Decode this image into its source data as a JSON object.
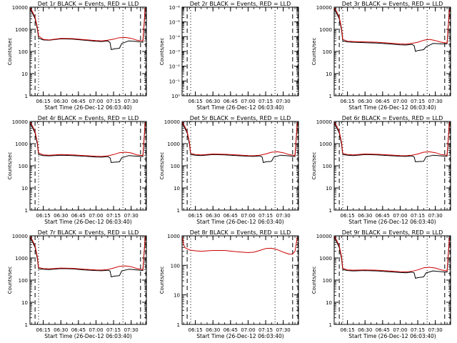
{
  "chart_data": [
    {
      "type": "line",
      "title": "Det 1r BLACK = Events, RED = LLD",
      "ylabel": "Counts/sec",
      "xlabel": "Start Time (26-Dec-12 06:03:40)",
      "xticks": [
        "06:15",
        "06:30",
        "06:45",
        "07:00",
        "07:15",
        "07:30"
      ],
      "yticks": [
        "1",
        "10",
        "100",
        "1000",
        "10000"
      ],
      "ylim": [
        1,
        10000
      ],
      "xlim": [
        "06:03:40",
        "07:43:00"
      ],
      "log_y": true,
      "series": [
        {
          "color": "#000000",
          "x": [
            "06:04",
            "06:06",
            "06:08",
            "06:10",
            "06:11",
            "06:15",
            "06:20",
            "06:30",
            "06:40",
            "06:50",
            "07:00",
            "07:05",
            "07:10",
            "07:12",
            "07:13",
            "07:15",
            "07:20",
            "07:22",
            "07:28",
            "07:35",
            "07:40",
            "07:42"
          ],
          "y": [
            8000,
            5000,
            3000,
            1000,
            400,
            330,
            320,
            370,
            360,
            320,
            290,
            280,
            300,
            250,
            120,
            130,
            140,
            230,
            300,
            280,
            260,
            9000
          ]
        },
        {
          "color": "#cc0000",
          "x": [
            "06:04",
            "06:06",
            "06:08",
            "06:10",
            "06:11",
            "06:15",
            "06:20",
            "06:30",
            "06:40",
            "06:50",
            "07:00",
            "07:05",
            "07:10",
            "07:15",
            "07:20",
            "07:25",
            "07:30",
            "07:35",
            "07:40",
            "07:42"
          ],
          "y": [
            9000,
            6000,
            3500,
            1200,
            500,
            350,
            330,
            390,
            380,
            340,
            310,
            300,
            320,
            360,
            420,
            430,
            390,
            320,
            300,
            9000
          ]
        }
      ]
    },
    {
      "type": "line",
      "title": "Det 2r BLACK = Events, RED = LLD",
      "ylabel": "Counts/sec",
      "xlabel": "Start Time (26-Dec-12 06:03:40)",
      "xticks": [
        "06:15",
        "06:30",
        "06:45",
        "07:00",
        "07:15",
        "07:30"
      ],
      "yticks": [
        "10⁰",
        "10⁻¹",
        "10⁻²",
        "10⁻³",
        "10⁻⁴",
        "10⁻⁵",
        "10⁻⁶"
      ],
      "ylim": [
        1,
        1e-06
      ],
      "xlim": [
        "06:03:40",
        "07:43:00"
      ],
      "log_y": true,
      "series": []
    },
    {
      "type": "line",
      "title": "Det 3r BLACK = Events, RED = LLD",
      "ylabel": "Counts/sec",
      "xlabel": "Start Time (26-Dec-12 06:03:40)",
      "xticks": [
        "06:15",
        "06:30",
        "06:45",
        "07:00",
        "07:15",
        "07:30"
      ],
      "yticks": [
        "1",
        "10",
        "100",
        "1000",
        "10000"
      ],
      "ylim": [
        1,
        10000
      ],
      "xlim": [
        "06:03:40",
        "07:43:00"
      ],
      "log_y": true,
      "series": [
        {
          "color": "#000000",
          "x": [
            "06:04",
            "06:06",
            "06:08",
            "06:10",
            "06:11",
            "06:15",
            "06:20",
            "06:30",
            "06:40",
            "06:50",
            "07:00",
            "07:05",
            "07:10",
            "07:12",
            "07:13",
            "07:15",
            "07:20",
            "07:22",
            "07:28",
            "07:35",
            "07:40",
            "07:42"
          ],
          "y": [
            8000,
            5000,
            3000,
            900,
            300,
            270,
            260,
            250,
            240,
            220,
            200,
            195,
            210,
            180,
            100,
            110,
            120,
            160,
            230,
            220,
            220,
            8000
          ]
        },
        {
          "color": "#cc0000",
          "x": [
            "06:04",
            "06:06",
            "06:08",
            "06:10",
            "06:11",
            "06:15",
            "06:20",
            "06:30",
            "06:40",
            "06:50",
            "07:00",
            "07:05",
            "07:10",
            "07:15",
            "07:20",
            "07:25",
            "07:30",
            "07:35",
            "07:40",
            "07:42"
          ],
          "y": [
            9000,
            6000,
            3500,
            1100,
            350,
            290,
            280,
            270,
            260,
            240,
            220,
            215,
            230,
            260,
            320,
            350,
            310,
            260,
            240,
            8000
          ]
        }
      ]
    },
    {
      "type": "line",
      "title": "Det 4r BLACK = Events, RED = LLD",
      "ylabel": "Counts/sec",
      "xlabel": "Start Time (26-Dec-12 06:03:40)",
      "xticks": [
        "06:15",
        "06:30",
        "06:45",
        "07:00",
        "07:15",
        "07:30"
      ],
      "yticks": [
        "1",
        "10",
        "100",
        "1000",
        "10000"
      ],
      "ylim": [
        1,
        10000
      ],
      "xlim": [
        "06:03:40",
        "07:43:00"
      ],
      "log_y": true,
      "series": [
        {
          "color": "#000000",
          "x": [
            "06:04",
            "06:06",
            "06:08",
            "06:10",
            "06:11",
            "06:15",
            "06:20",
            "06:30",
            "06:40",
            "06:50",
            "07:00",
            "07:05",
            "07:10",
            "07:12",
            "07:13",
            "07:15",
            "07:20",
            "07:22",
            "07:28",
            "07:35",
            "07:40",
            "07:42"
          ],
          "y": [
            8000,
            5000,
            3000,
            900,
            320,
            290,
            280,
            300,
            290,
            270,
            250,
            245,
            260,
            230,
            140,
            145,
            150,
            230,
            290,
            270,
            260,
            9000
          ]
        },
        {
          "color": "#cc0000",
          "x": [
            "06:04",
            "06:06",
            "06:08",
            "06:10",
            "06:11",
            "06:15",
            "06:20",
            "06:30",
            "06:40",
            "06:50",
            "07:00",
            "07:05",
            "07:10",
            "07:15",
            "07:20",
            "07:25",
            "07:30",
            "07:35",
            "07:40",
            "07:42"
          ],
          "y": [
            9000,
            6000,
            3500,
            1100,
            380,
            310,
            300,
            320,
            310,
            290,
            270,
            265,
            280,
            320,
            390,
            410,
            380,
            310,
            290,
            9000
          ]
        }
      ]
    },
    {
      "type": "line",
      "title": "Det 5r BLACK = Events, RED = LLD",
      "ylabel": "Counts/sec",
      "xlabel": "Start Time (26-Dec-12 06:03:40)",
      "xticks": [
        "06:15",
        "06:30",
        "06:45",
        "07:00",
        "07:15",
        "07:30"
      ],
      "yticks": [
        "1",
        "10",
        "100",
        "1000",
        "10000"
      ],
      "ylim": [
        1,
        10000
      ],
      "xlim": [
        "06:03:40",
        "07:43:00"
      ],
      "log_y": true,
      "series": [
        {
          "color": "#000000",
          "x": [
            "06:04",
            "06:06",
            "06:08",
            "06:10",
            "06:11",
            "06:15",
            "06:20",
            "06:30",
            "06:40",
            "06:50",
            "07:00",
            "07:05",
            "07:10",
            "07:12",
            "07:13",
            "07:15",
            "07:20",
            "07:22",
            "07:28",
            "07:35",
            "07:40",
            "07:42"
          ],
          "y": [
            8000,
            5000,
            3000,
            900,
            320,
            300,
            290,
            320,
            310,
            290,
            270,
            265,
            280,
            250,
            140,
            150,
            160,
            250,
            300,
            280,
            260,
            9000
          ]
        },
        {
          "color": "#cc0000",
          "x": [
            "06:04",
            "06:06",
            "06:08",
            "06:10",
            "06:11",
            "06:15",
            "06:20",
            "06:30",
            "06:40",
            "06:50",
            "07:00",
            "07:05",
            "07:10",
            "07:15",
            "07:20",
            "07:25",
            "07:30",
            "07:35",
            "07:40",
            "07:42"
          ],
          "y": [
            9000,
            6000,
            3500,
            1100,
            360,
            320,
            310,
            340,
            330,
            310,
            290,
            285,
            300,
            340,
            410,
            430,
            390,
            320,
            290,
            9000
          ]
        }
      ]
    },
    {
      "type": "line",
      "title": "Det 6r BLACK = Events, RED = LLD",
      "ylabel": "Counts/sec",
      "xlabel": "Start Time (26-Dec-12 06:03:40)",
      "xticks": [
        "06:15",
        "06:30",
        "06:45",
        "07:00",
        "07:15",
        "07:30"
      ],
      "yticks": [
        "1",
        "10",
        "100",
        "1000",
        "10000"
      ],
      "ylim": [
        1,
        10000
      ],
      "xlim": [
        "06:03:40",
        "07:43:00"
      ],
      "log_y": true,
      "series": [
        {
          "color": "#000000",
          "x": [
            "06:04",
            "06:06",
            "06:08",
            "06:10",
            "06:11",
            "06:15",
            "06:20",
            "06:30",
            "06:40",
            "06:50",
            "07:00",
            "07:05",
            "07:10",
            "07:12",
            "07:13",
            "07:15",
            "07:20",
            "07:22",
            "07:28",
            "07:35",
            "07:40",
            "07:42"
          ],
          "y": [
            8000,
            5000,
            3000,
            900,
            320,
            300,
            290,
            320,
            310,
            290,
            270,
            265,
            280,
            250,
            150,
            155,
            160,
            250,
            300,
            280,
            270,
            9000
          ]
        },
        {
          "color": "#cc0000",
          "x": [
            "06:04",
            "06:06",
            "06:08",
            "06:10",
            "06:11",
            "06:15",
            "06:20",
            "06:30",
            "06:40",
            "06:50",
            "07:00",
            "07:05",
            "07:10",
            "07:15",
            "07:20",
            "07:25",
            "07:30",
            "07:35",
            "07:40",
            "07:42"
          ],
          "y": [
            9000,
            6000,
            3500,
            1100,
            360,
            320,
            310,
            340,
            330,
            310,
            290,
            285,
            300,
            340,
            410,
            430,
            390,
            320,
            300,
            9000
          ]
        }
      ]
    },
    {
      "type": "line",
      "title": "Det 7r BLACK = Events, RED = LLD",
      "ylabel": "Counts/sec",
      "xlabel": "Start Time (26-Dec-12 06:03:40)",
      "xticks": [
        "06:15",
        "06:30",
        "06:45",
        "07:00",
        "07:15",
        "07:30"
      ],
      "yticks": [
        "1",
        "10",
        "100",
        "1000",
        "10000"
      ],
      "ylim": [
        1,
        10000
      ],
      "xlim": [
        "06:03:40",
        "07:43:00"
      ],
      "log_y": true,
      "series": [
        {
          "color": "#000000",
          "x": [
            "06:04",
            "06:06",
            "06:08",
            "06:10",
            "06:11",
            "06:15",
            "06:20",
            "06:30",
            "06:40",
            "06:50",
            "07:00",
            "07:05",
            "07:10",
            "07:12",
            "07:13",
            "07:15",
            "07:20",
            "07:22",
            "07:28",
            "07:35",
            "07:40",
            "07:42"
          ],
          "y": [
            8000,
            5000,
            3000,
            900,
            320,
            310,
            300,
            330,
            320,
            290,
            270,
            265,
            280,
            260,
            140,
            150,
            160,
            260,
            310,
            290,
            270,
            9000
          ]
        },
        {
          "color": "#cc0000",
          "x": [
            "06:04",
            "06:06",
            "06:08",
            "06:10",
            "06:11",
            "06:15",
            "06:20",
            "06:30",
            "06:40",
            "06:50",
            "07:00",
            "07:05",
            "07:10",
            "07:15",
            "07:20",
            "07:25",
            "07:30",
            "07:35",
            "07:40",
            "07:42"
          ],
          "y": [
            9000,
            6000,
            3500,
            1100,
            370,
            330,
            320,
            350,
            340,
            310,
            290,
            285,
            300,
            350,
            420,
            440,
            400,
            330,
            300,
            9000
          ]
        }
      ]
    },
    {
      "type": "line",
      "title": "Det 8r BLACK = Events, RED = LLD",
      "ylabel": "Counts/sec",
      "xlabel": "Start Time (26-Dec-12 06:03:40)",
      "xticks": [
        "06:15",
        "06:30",
        "06:45",
        "07:00",
        "07:15",
        "07:30"
      ],
      "yticks": [
        "1",
        "10",
        "100",
        "1000"
      ],
      "ylim": [
        1,
        1000
      ],
      "xlim": [
        "06:03:40",
        "07:43:00"
      ],
      "log_y": true,
      "series": [
        {
          "color": "#cc0000",
          "x": [
            "06:04",
            "06:05",
            "06:06",
            "06:10",
            "06:15",
            "06:20",
            "06:30",
            "06:40",
            "06:50",
            "07:00",
            "07:05",
            "07:10",
            "07:15",
            "07:20",
            "07:25",
            "07:30",
            "07:35",
            "07:38",
            "07:40",
            "07:42"
          ],
          "y": [
            900,
            500,
            400,
            330,
            310,
            300,
            320,
            320,
            290,
            270,
            280,
            320,
            370,
            380,
            340,
            280,
            240,
            240,
            300,
            900
          ]
        }
      ]
    },
    {
      "type": "line",
      "title": "Det 9r BLACK = Events, RED = LLD",
      "ylabel": "Counts/sec",
      "xlabel": "Start Time (26-Dec-12 06:03:40)",
      "xticks": [
        "06:15",
        "06:30",
        "06:45",
        "07:00",
        "07:15",
        "07:30"
      ],
      "yticks": [
        "1",
        "10",
        "100",
        "1000",
        "10000"
      ],
      "ylim": [
        1,
        10000
      ],
      "xlim": [
        "06:03:40",
        "07:43:00"
      ],
      "log_y": true,
      "series": [
        {
          "color": "#000000",
          "x": [
            "06:04",
            "06:06",
            "06:08",
            "06:10",
            "06:11",
            "06:15",
            "06:20",
            "06:30",
            "06:40",
            "06:50",
            "07:00",
            "07:05",
            "07:10",
            "07:12",
            "07:13",
            "07:15",
            "07:20",
            "07:22",
            "07:28",
            "07:35",
            "07:40",
            "07:42"
          ],
          "y": [
            8000,
            5000,
            3000,
            900,
            300,
            270,
            260,
            270,
            260,
            240,
            220,
            215,
            230,
            210,
            120,
            130,
            140,
            210,
            260,
            240,
            230,
            8000
          ]
        },
        {
          "color": "#cc0000",
          "x": [
            "06:04",
            "06:06",
            "06:08",
            "06:10",
            "06:11",
            "06:15",
            "06:20",
            "06:30",
            "06:40",
            "06:50",
            "07:00",
            "07:05",
            "07:10",
            "07:15",
            "07:20",
            "07:25",
            "07:30",
            "07:35",
            "07:40",
            "07:42"
          ],
          "y": [
            9000,
            6000,
            3500,
            1100,
            340,
            290,
            280,
            290,
            280,
            260,
            240,
            235,
            250,
            290,
            360,
            380,
            350,
            290,
            260,
            8000
          ]
        }
      ]
    }
  ]
}
